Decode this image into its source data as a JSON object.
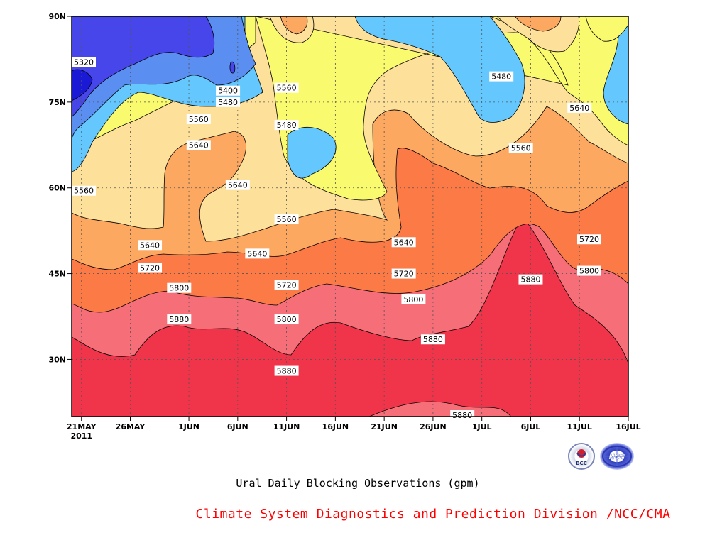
{
  "chart_data": {
    "type": "heatmap",
    "title": "Ural Daily Blocking Observations (gpm)",
    "x_ticks": [
      "21MAY",
      "26MAY",
      "1JUN",
      "6JUN",
      "11JUN",
      "16JUN",
      "21JUN",
      "26JUN",
      "1JUL",
      "6JUL",
      "11JUL",
      "16JUL"
    ],
    "x_year": "2011",
    "x_range": [
      "2011-05-20",
      "2011-07-16"
    ],
    "y_ticks": [
      "30N",
      "45N",
      "60N",
      "75N",
      "90N"
    ],
    "y_range": [
      20,
      90
    ],
    "contour_levels": [
      5320,
      5400,
      5480,
      5560,
      5640,
      5720,
      5800,
      5880
    ],
    "band_colors": [
      "#1a1ad6",
      "#4646eb",
      "#5a8ef0",
      "#64c8ff",
      "#fafa6e",
      "#fde09a",
      "#fca860",
      "#fc7a46",
      "#f56e78",
      "#f0344a"
    ],
    "contour_labels": [
      {
        "text": "5320",
        "date": "2011-05-21",
        "lat": 82
      },
      {
        "text": "5400",
        "date": "2011-06-05",
        "lat": 77
      },
      {
        "text": "5480",
        "date": "2011-06-05",
        "lat": 75
      },
      {
        "text": "5560",
        "date": "2011-06-02",
        "lat": 72
      },
      {
        "text": "5640",
        "date": "2011-06-02",
        "lat": 67.5
      },
      {
        "text": "5640",
        "date": "2011-06-06",
        "lat": 60.5
      },
      {
        "text": "5560",
        "date": "2011-06-11",
        "lat": 77.5
      },
      {
        "text": "5480",
        "date": "2011-06-11",
        "lat": 71
      },
      {
        "text": "5480",
        "date": "2011-07-03",
        "lat": 79.5
      },
      {
        "text": "5640",
        "date": "2011-07-11",
        "lat": 74
      },
      {
        "text": "5560",
        "date": "2011-07-05",
        "lat": 67
      },
      {
        "text": "5560",
        "date": "2011-05-20",
        "lat": 59.5
      },
      {
        "text": "5560",
        "date": "2011-06-11",
        "lat": 54.5
      },
      {
        "text": "5640",
        "date": "2011-05-28",
        "lat": 50
      },
      {
        "text": "5640",
        "date": "2011-06-08",
        "lat": 48.5
      },
      {
        "text": "5640",
        "date": "2011-06-23",
        "lat": 50.5
      },
      {
        "text": "5720",
        "date": "2011-05-28",
        "lat": 46
      },
      {
        "text": "5720",
        "date": "2011-06-11",
        "lat": 43
      },
      {
        "text": "5720",
        "date": "2011-06-23",
        "lat": 45
      },
      {
        "text": "5720",
        "date": "2011-07-12",
        "lat": 51
      },
      {
        "text": "5800",
        "date": "2011-05-31",
        "lat": 42.5
      },
      {
        "text": "5800",
        "date": "2011-06-11",
        "lat": 37
      },
      {
        "text": "5800",
        "date": "2011-06-24",
        "lat": 40.5
      },
      {
        "text": "5800",
        "date": "2011-07-12",
        "lat": 45.5
      },
      {
        "text": "5880",
        "date": "2011-07-06",
        "lat": 44
      },
      {
        "text": "5880",
        "date": "2011-05-31",
        "lat": 37
      },
      {
        "text": "5880",
        "date": "2011-06-11",
        "lat": 28
      },
      {
        "text": "5880",
        "date": "2011-06-26",
        "lat": 33.5
      },
      {
        "text": "5880",
        "date": "2011-06-29",
        "lat": 20
      }
    ]
  },
  "captions": {
    "main": "Ural Daily Blocking Observations (gpm)",
    "credit": "Climate System Diagnostics and Prediction Division /NCC/CMA"
  },
  "logos": [
    {
      "name": "BCC",
      "text": "BCC"
    },
    {
      "name": "NCC",
      "text": "NCC"
    }
  ]
}
